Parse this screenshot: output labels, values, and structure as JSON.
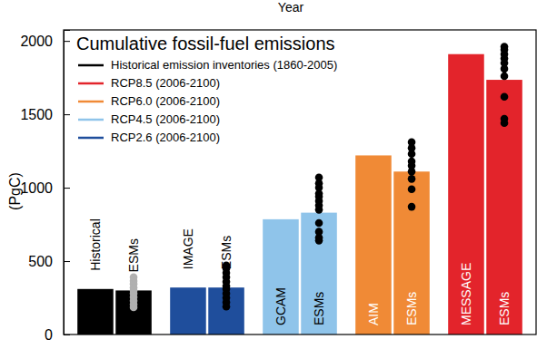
{
  "chart_data": {
    "type": "bar",
    "title": "Cumulative fossil-fuel emissions",
    "y_label": "(PgC)",
    "annotations": [
      "Year"
    ],
    "categories": [
      "Historical",
      "ESMs",
      "IMAGE",
      "ESMs",
      "GCAM",
      "ESMs",
      "AIM",
      "ESMs",
      "MESSAGE",
      "ESMs"
    ],
    "series": [
      {
        "name": "Historical emission inventories (1860-2005)",
        "color": "#000000",
        "values": [
          310,
          300,
          null,
          null,
          null,
          null,
          null,
          null,
          null,
          null
        ],
        "dots": [
          185,
          205,
          230,
          255,
          280,
          300,
          320,
          345,
          365,
          390
        ]
      },
      {
        "name": "RCP8.5 (2006-2100)",
        "color": "#e3242b",
        "values": [
          null,
          null,
          null,
          null,
          null,
          null,
          null,
          null,
          1910,
          1735
        ],
        "dots": [
          1440,
          1470,
          1620,
          1760,
          1810,
          1850,
          1880,
          1910,
          1940,
          1960
        ]
      },
      {
        "name": "RCP6.0 (2006-2100)",
        "color": "#f08a36",
        "values": [
          null,
          null,
          null,
          null,
          null,
          null,
          1220,
          1110,
          null,
          null
        ],
        "dots": [
          870,
          990,
          1060,
          1110,
          1150,
          1180,
          1230,
          1270,
          1310
        ]
      },
      {
        "name": "RCP4.5 (2006-2100)",
        "color": "#8fc4ea",
        "values": [
          null,
          null,
          null,
          null,
          785,
          830,
          null,
          null,
          null,
          null
        ],
        "dots": [
          640,
          660,
          700,
          760,
          850,
          880,
          910,
          940,
          960,
          1000,
          1030,
          1070
        ]
      },
      {
        "name": "RCP2.6 (2006-2100)",
        "color": "#1f4e9c",
        "values": [
          null,
          null,
          320,
          320,
          null,
          null,
          null,
          null,
          null,
          null
        ],
        "dots": [
          190,
          220,
          250,
          280,
          310,
          330,
          360,
          390,
          420,
          450,
          470
        ]
      }
    ],
    "ylim": [
      0,
      2075
    ],
    "yticks": [
      0,
      500,
      1000,
      1500,
      2000
    ],
    "tick_labels": "y",
    "legend": "upper left"
  }
}
